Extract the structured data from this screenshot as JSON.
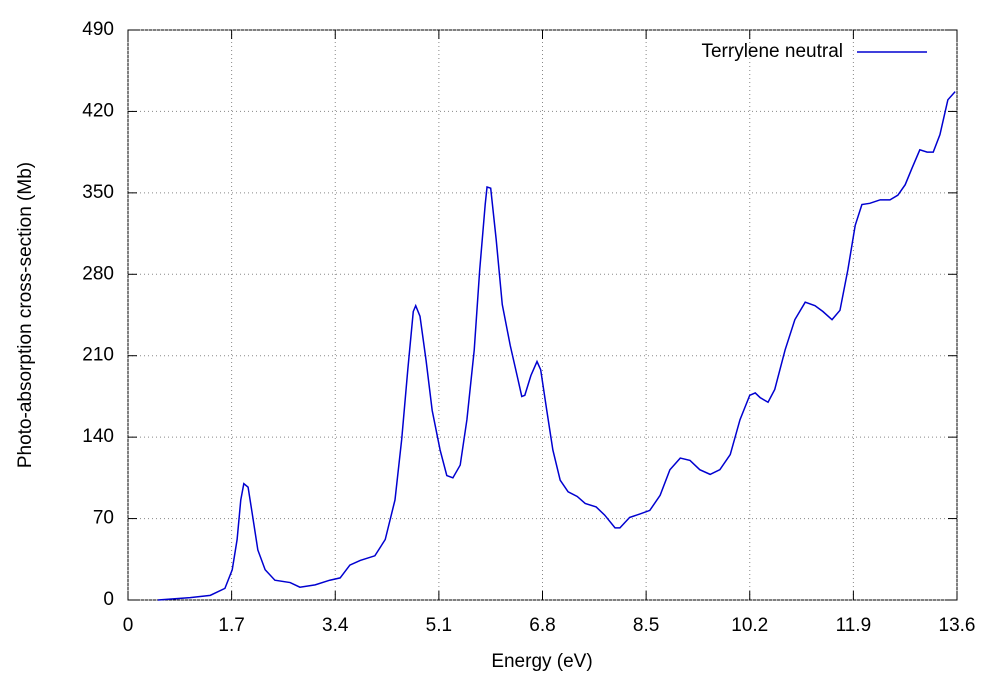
{
  "chart_data": {
    "type": "line",
    "x_label": "Energy (eV)",
    "y_label": "Photo-absorption cross-section (Mb)",
    "x": [
      0.49,
      1.02,
      1.35,
      1.59,
      1.71,
      1.79,
      1.85,
      1.9,
      1.97,
      2.03,
      2.13,
      2.25,
      2.41,
      2.66,
      2.82,
      3.07,
      3.31,
      3.48,
      3.64,
      3.81,
      4.05,
      4.22,
      4.38,
      4.49,
      4.59,
      4.68,
      4.72,
      4.79,
      4.89,
      4.99,
      5.12,
      5.23,
      5.33,
      5.45,
      5.56,
      5.68,
      5.77,
      5.86,
      5.89,
      5.95,
      6.04,
      6.14,
      6.27,
      6.4,
      6.46,
      6.51,
      6.61,
      6.71,
      6.77,
      6.87,
      6.97,
      7.09,
      7.22,
      7.37,
      7.5,
      7.68,
      7.82,
      7.99,
      8.07,
      8.23,
      8.4,
      8.56,
      8.73,
      8.89,
      9.06,
      9.22,
      9.38,
      9.55,
      9.71,
      9.88,
      10.04,
      10.2,
      10.29,
      10.37,
      10.5,
      10.61,
      10.78,
      10.94,
      11.11,
      11.27,
      11.4,
      11.55,
      11.68,
      11.81,
      11.93,
      12.04,
      12.17,
      12.34,
      12.5,
      12.63,
      12.75,
      12.86,
      12.99,
      13.11,
      13.21,
      13.32,
      13.45,
      13.57
    ],
    "series": [
      {
        "name": "Terrylene neutral",
        "color": "#0000d0",
        "values": [
          0,
          2,
          4,
          10,
          26,
          52,
          86,
          100,
          97,
          77,
          43,
          26,
          17,
          15,
          11,
          13,
          17,
          19,
          30,
          34,
          38,
          52,
          86,
          138,
          198,
          248,
          253,
          244,
          206,
          163,
          129,
          107,
          105,
          116,
          155,
          215,
          284,
          340,
          355,
          354,
          310,
          254,
          219,
          189,
          175,
          176,
          193,
          205,
          198,
          163,
          129,
          103,
          93,
          89,
          83,
          80,
          73,
          62,
          62,
          71,
          74,
          77,
          90,
          112,
          122,
          120,
          112,
          108,
          112,
          125,
          155,
          176,
          178,
          174,
          170,
          181,
          215,
          241,
          256,
          253,
          248,
          241,
          249,
          284,
          322,
          340,
          341,
          344,
          344,
          348,
          357,
          371,
          387,
          385,
          385,
          400,
          430,
          437
        ]
      }
    ],
    "xlim": [
      0,
      13.6
    ],
    "xticks": [
      0,
      1.7,
      3.4,
      5.1,
      6.8,
      8.5,
      10.2,
      11.9,
      13.6
    ],
    "ylim": [
      0,
      490
    ],
    "yticks": [
      0,
      70,
      140,
      210,
      280,
      350,
      420,
      490
    ],
    "grid": true,
    "legend": "top-right"
  }
}
